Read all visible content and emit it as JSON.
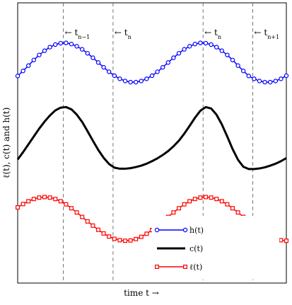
{
  "chart_data": {
    "type": "line",
    "xlabel": "time t   →",
    "ylabel": "ℓ(t), c(t) and h(t)",
    "xlim": [
      0,
      1
    ],
    "ylim": [
      0,
      1
    ],
    "grid": false,
    "legend_position": "bottom-right",
    "markers": [
      {
        "x": 0.17,
        "label": "← t_{n−1}"
      },
      {
        "x": 0.355,
        "label": "← t_n"
      },
      {
        "x": 0.69,
        "label": "← t_n"
      },
      {
        "x": 0.875,
        "label": "← t_{n+1}"
      }
    ],
    "series": [
      {
        "name": "h(t)",
        "color": "#0000ff",
        "marker": "circle",
        "x": [
          0.0,
          0.02,
          0.04,
          0.06,
          0.08,
          0.1,
          0.12,
          0.14,
          0.16,
          0.18,
          0.2,
          0.22,
          0.24,
          0.26,
          0.28,
          0.3,
          0.32,
          0.34,
          0.36,
          0.38,
          0.4,
          0.42,
          0.44,
          0.46,
          0.48,
          0.5,
          0.52,
          0.54,
          0.56,
          0.58,
          0.6,
          0.62,
          0.64,
          0.66,
          0.68,
          0.7,
          0.72,
          0.74,
          0.76,
          0.78,
          0.8,
          0.82,
          0.84,
          0.86,
          0.88,
          0.9,
          0.92,
          0.94,
          0.96,
          0.98,
          1.0
        ],
        "y": [
          0.739,
          0.757,
          0.776,
          0.796,
          0.814,
          0.829,
          0.842,
          0.851,
          0.856,
          0.857,
          0.853,
          0.845,
          0.834,
          0.82,
          0.804,
          0.787,
          0.77,
          0.754,
          0.74,
          0.729,
          0.721,
          0.717,
          0.717,
          0.721,
          0.729,
          0.74,
          0.754,
          0.77,
          0.787,
          0.804,
          0.82,
          0.834,
          0.845,
          0.853,
          0.857,
          0.856,
          0.851,
          0.842,
          0.829,
          0.814,
          0.796,
          0.776,
          0.757,
          0.739,
          0.729,
          0.721,
          0.717,
          0.717,
          0.721,
          0.729,
          0.74
        ]
      },
      {
        "name": "c(t)",
        "color": "#000000",
        "marker": "none",
        "x": [
          0.0,
          0.02,
          0.04,
          0.06,
          0.08,
          0.1,
          0.12,
          0.14,
          0.16,
          0.18,
          0.2,
          0.22,
          0.24,
          0.26,
          0.28,
          0.3,
          0.32,
          0.34,
          0.36,
          0.38,
          0.4,
          0.42,
          0.44,
          0.46,
          0.48,
          0.5,
          0.52,
          0.54,
          0.56,
          0.58,
          0.6,
          0.62,
          0.64,
          0.66,
          0.68,
          0.7,
          0.72,
          0.74,
          0.76,
          0.78,
          0.8,
          0.82,
          0.84,
          0.86,
          0.88,
          0.9,
          0.92,
          0.94,
          0.96,
          0.98,
          1.0
        ],
        "y": [
          0.441,
          0.467,
          0.495,
          0.523,
          0.551,
          0.576,
          0.598,
          0.616,
          0.626,
          0.628,
          0.62,
          0.601,
          0.575,
          0.542,
          0.508,
          0.475,
          0.447,
          0.425,
          0.412,
          0.408,
          0.408,
          0.41,
          0.414,
          0.419,
          0.426,
          0.435,
          0.445,
          0.457,
          0.471,
          0.488,
          0.508,
          0.533,
          0.561,
          0.59,
          0.615,
          0.628,
          0.623,
          0.601,
          0.566,
          0.523,
          0.478,
          0.44,
          0.415,
          0.407,
          0.407,
          0.409,
          0.413,
          0.419,
          0.426,
          0.435,
          0.446
        ]
      },
      {
        "name": "ℓ(t)",
        "color": "#ff0000",
        "marker": "square",
        "x": [
          0.0,
          0.02,
          0.04,
          0.06,
          0.08,
          0.1,
          0.12,
          0.14,
          0.16,
          0.18,
          0.2,
          0.22,
          0.24,
          0.26,
          0.28,
          0.3,
          0.32,
          0.34,
          0.36,
          0.38,
          0.4,
          0.42,
          0.44,
          0.46,
          0.48,
          0.5,
          0.52,
          0.54,
          0.56,
          0.58,
          0.6,
          0.62,
          0.64,
          0.66,
          0.68,
          0.7,
          0.72,
          0.74,
          0.76,
          0.78,
          0.8,
          0.82,
          0.84,
          0.86,
          0.88,
          0.9,
          0.92,
          0.94,
          0.96,
          0.98,
          1.0
        ],
        "y": [
          0.27,
          0.282,
          0.292,
          0.3,
          0.305,
          0.307,
          0.305,
          0.3,
          0.292,
          0.281,
          0.267,
          0.252,
          0.236,
          0.22,
          0.205,
          0.19,
          0.177,
          0.166,
          0.158,
          0.153,
          0.151,
          0.152,
          0.157,
          0.165,
          0.176,
          0.189,
          0.204,
          0.22,
          0.236,
          0.252,
          0.267,
          0.281,
          0.292,
          0.3,
          0.305,
          0.307,
          0.305,
          0.3,
          0.292,
          0.281,
          0.267,
          0.252,
          0.236,
          0.22,
          0.205,
          0.19,
          0.177,
          0.166,
          0.158,
          0.153,
          0.151
        ]
      }
    ]
  }
}
